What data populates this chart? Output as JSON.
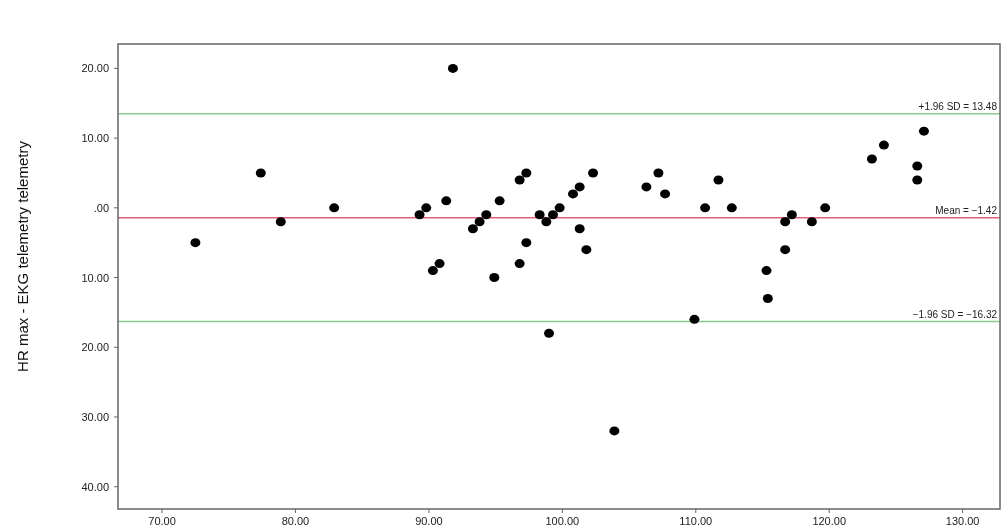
{
  "chart_data": {
    "type": "scatter",
    "ylabel": "HR max - EKG telemetry telemetry",
    "x": [
      72.5,
      77.4,
      78.9,
      82.9,
      89.3,
      89.8,
      91.3,
      90.3,
      90.8,
      91.8,
      93.3,
      93.8,
      94.3,
      95.3,
      94.9,
      96.8,
      97.3,
      96.8,
      97.3,
      98.3,
      98.8,
      99.3,
      99.8,
      100.8,
      101.3,
      102.3,
      101.3,
      101.8,
      99.0,
      103.9,
      106.3,
      107.2,
      107.7,
      109.9,
      110.7,
      111.7,
      112.7,
      115.3,
      115.4,
      116.7,
      117.2,
      116.7,
      118.7,
      119.7,
      123.2,
      124.1,
      126.6,
      126.6,
      127.1
    ],
    "values": [
      -5,
      5,
      -2,
      0,
      -1,
      0,
      1,
      -9,
      -8,
      20,
      -3,
      -2,
      -1,
      1,
      -10,
      4,
      5,
      -8,
      -5,
      -1,
      -2,
      -1,
      0,
      2,
      3,
      5,
      -3,
      -6,
      -18,
      -32,
      3,
      5,
      2,
      -16,
      0,
      4,
      0,
      -9,
      -13,
      -2,
      -1,
      -6,
      -2,
      0,
      7,
      9,
      6,
      4,
      11
    ],
    "color": "#000000",
    "marker": "circle",
    "xlim": [
      66.7,
      132.8
    ],
    "ylim": [
      -43.2,
      23.5
    ],
    "xticks": [
      {
        "value": 70,
        "label": "70.00"
      },
      {
        "value": 80,
        "label": "80.00"
      },
      {
        "value": 90,
        "label": "90.00"
      },
      {
        "value": 100,
        "label": "100.00"
      },
      {
        "value": 110,
        "label": "110.00"
      },
      {
        "value": 120,
        "label": "120.00"
      },
      {
        "value": 130,
        "label": "130.00"
      }
    ],
    "yticks": [
      {
        "value": 20,
        "label": "20.00"
      },
      {
        "value": 10,
        "label": "10.00"
      },
      {
        "value": 0,
        "label": ".00"
      },
      {
        "value": -10,
        "label": "10.00"
      },
      {
        "value": -20,
        "label": "20.00"
      },
      {
        "value": -30,
        "label": "30.00"
      },
      {
        "value": -40,
        "label": "40.00"
      }
    ],
    "ref_lines": [
      {
        "axis": "y",
        "value": 13.48,
        "label": "+1.96 SD = 13.48",
        "color": "#8cc98c"
      },
      {
        "axis": "y",
        "value": -1.42,
        "label": "Mean = −1.42",
        "color": "#e0607e"
      },
      {
        "axis": "y",
        "value": -16.32,
        "label": "−1.96 SD = −16.32",
        "color": "#8cc98c"
      }
    ],
    "grid": false
  }
}
